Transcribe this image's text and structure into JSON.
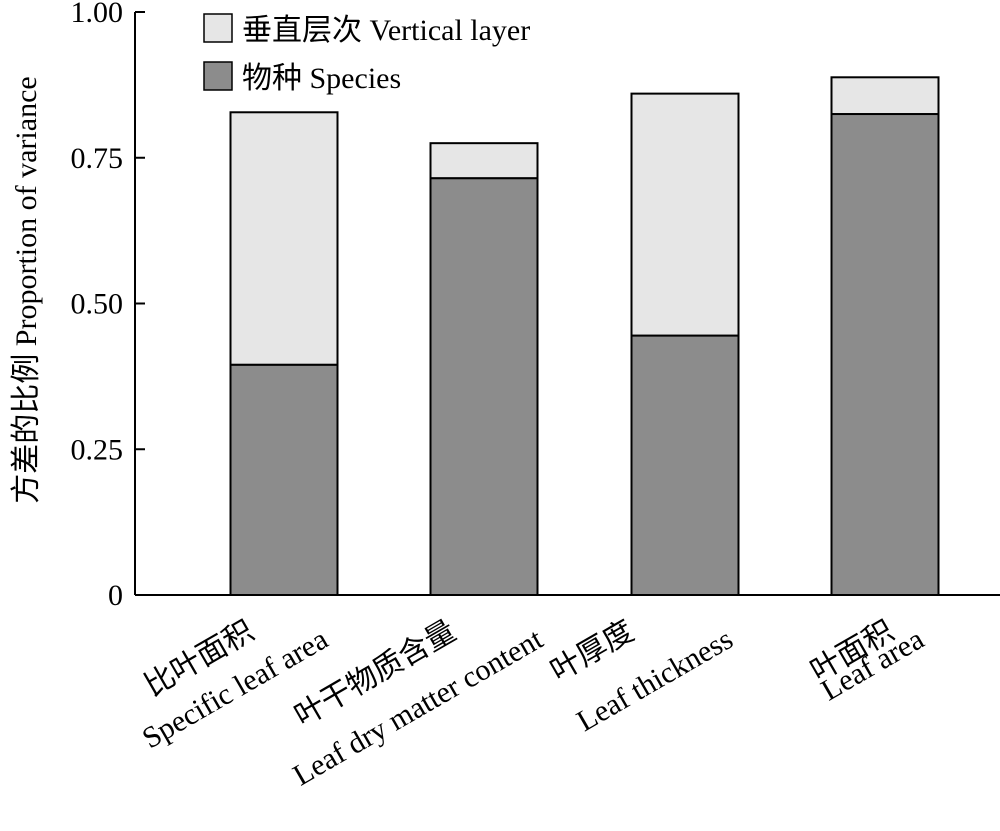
{
  "chart_data": {
    "type": "bar",
    "stacked": true,
    "title": "",
    "xlabel": "",
    "ylabel": "方差的比例 Proportion of variance",
    "ylim": [
      0,
      1.0
    ],
    "yticks": [
      "0",
      "0.25",
      "0.50",
      "0.75",
      "1.00"
    ],
    "ytick_values": [
      0,
      0.25,
      0.5,
      0.75,
      1.0
    ],
    "categories": [
      {
        "zh": "比叶面积",
        "en": "Specific leaf area"
      },
      {
        "zh": "叶干物质含量",
        "en": "Leaf dry matter content"
      },
      {
        "zh": "叶厚度",
        "en": "Leaf thickness"
      },
      {
        "zh": "叶面积",
        "en": "Leaf area"
      }
    ],
    "series": [
      {
        "name": "物种 Species",
        "color": "#8c8c8c",
        "values": [
          0.395,
          0.715,
          0.445,
          0.825
        ]
      },
      {
        "name": "垂直层次 Vertical layer",
        "color": "#e6e6e6",
        "values": [
          0.433,
          0.06,
          0.415,
          0.063
        ]
      }
    ],
    "legend": {
      "position": "top-left",
      "entries": [
        "垂直层次 Vertical layer",
        "物种 Species"
      ]
    },
    "grid": false
  }
}
